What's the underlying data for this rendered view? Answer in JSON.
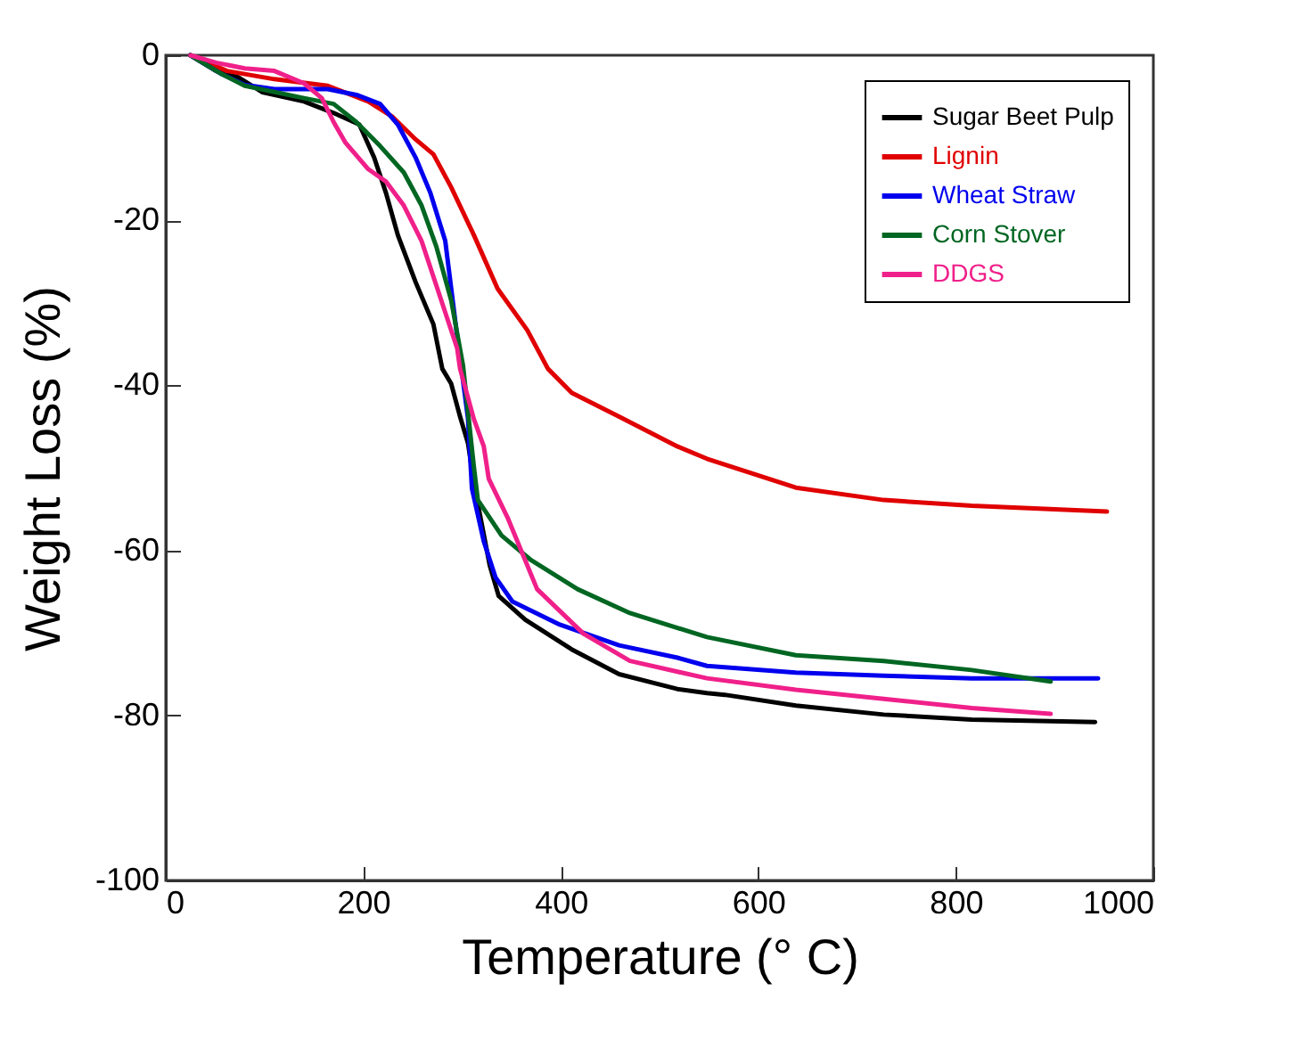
{
  "chart_data": {
    "type": "line",
    "xlabel": "Temperature (° C)",
    "ylabel": "Weight Loss (%)",
    "xlim": [
      0,
      1000
    ],
    "ylim": [
      -100,
      0
    ],
    "xticks": [
      0,
      200,
      400,
      600,
      800,
      1000
    ],
    "yticks": [
      -100,
      -80,
      -60,
      -40,
      -20,
      0
    ],
    "grid": false,
    "legend": "top right",
    "line_style": "solid",
    "series": [
      {
        "name": "Sugar Beet Pulp",
        "color": "#000000",
        "x": [
          25,
          51,
          74,
          98,
          140,
          170,
          196,
          211,
          223,
          235,
          253,
          271,
          280,
          289,
          298,
          306,
          313,
          328,
          337,
          364,
          411,
          459,
          518,
          548,
          566,
          638,
          727,
          816,
          941
        ],
        "values": [
          0,
          -1.9,
          -2.7,
          -4.5,
          -5.6,
          -7,
          -8.4,
          -12.4,
          -16.7,
          -21.8,
          -27.5,
          -32.6,
          -38,
          -39.8,
          -43.8,
          -47,
          -52.5,
          -61.8,
          -65.5,
          -68.4,
          -72,
          -75,
          -76.8,
          -77.3,
          -77.5,
          -78.8,
          -79.9,
          -80.5,
          -80.8
        ]
      },
      {
        "name": "Lignin",
        "color": "#e00000",
        "x": [
          25,
          62,
          110,
          164,
          205,
          229,
          253,
          271,
          289,
          312,
          336,
          366,
          387,
          411,
          459,
          518,
          548,
          638,
          727,
          816,
          953
        ],
        "values": [
          0,
          -1.9,
          -2.9,
          -3.7,
          -5.6,
          -7.4,
          -10.2,
          -12,
          -16,
          -21.8,
          -28.3,
          -33.3,
          -38,
          -40.9,
          -43.8,
          -47.4,
          -48.9,
          -52.4,
          -53.9,
          -54.6,
          -55.3
        ]
      },
      {
        "name": "Wheat Straw",
        "color": "#0000ee",
        "x": [
          25,
          57,
          80,
          110,
          164,
          193,
          217,
          235,
          253,
          268,
          283,
          295,
          306,
          310,
          322,
          334,
          351,
          399,
          459,
          518,
          548,
          638,
          727,
          816,
          944
        ],
        "values": [
          0,
          -2.3,
          -3.6,
          -4.1,
          -4.1,
          -4.8,
          -5.9,
          -8.4,
          -12.4,
          -16.7,
          -22.5,
          -34,
          -44,
          -52.5,
          -58.9,
          -63.3,
          -66.2,
          -69,
          -71.5,
          -73,
          -74,
          -74.8,
          -75.2,
          -75.5,
          -75.5
        ]
      },
      {
        "name": "Corn Stover",
        "color": "#006622",
        "x": [
          25,
          57,
          80,
          140,
          170,
          193,
          217,
          241,
          259,
          274,
          289,
          301,
          312,
          316,
          340,
          369,
          417,
          470,
          548,
          638,
          727,
          816,
          896
        ],
        "values": [
          0,
          -2.3,
          -3.7,
          -5.2,
          -5.9,
          -8.1,
          -11,
          -14.2,
          -18.2,
          -23.2,
          -29.7,
          -37.6,
          -49.9,
          -53.9,
          -58.2,
          -61.1,
          -64.7,
          -67.6,
          -70.5,
          -72.7,
          -73.4,
          -74.5,
          -75.9
        ]
      },
      {
        "name": "DDGS",
        "color": "#f0208a",
        "x": [
          25,
          51,
          80,
          110,
          140,
          158,
          170,
          182,
          205,
          223,
          241,
          259,
          277,
          295,
          298,
          312,
          322,
          327,
          346,
          376,
          423,
          470,
          548,
          638,
          727,
          816,
          896
        ],
        "values": [
          0,
          -0.9,
          -1.6,
          -1.9,
          -3.4,
          -5.2,
          -8.1,
          -10.6,
          -13.8,
          -15.3,
          -18.2,
          -22.5,
          -29,
          -35.5,
          -38,
          -44.1,
          -47.4,
          -51.3,
          -56,
          -64.7,
          -70.1,
          -73.4,
          -75.5,
          -76.9,
          -78,
          -79.1,
          -79.8
        ]
      }
    ]
  }
}
